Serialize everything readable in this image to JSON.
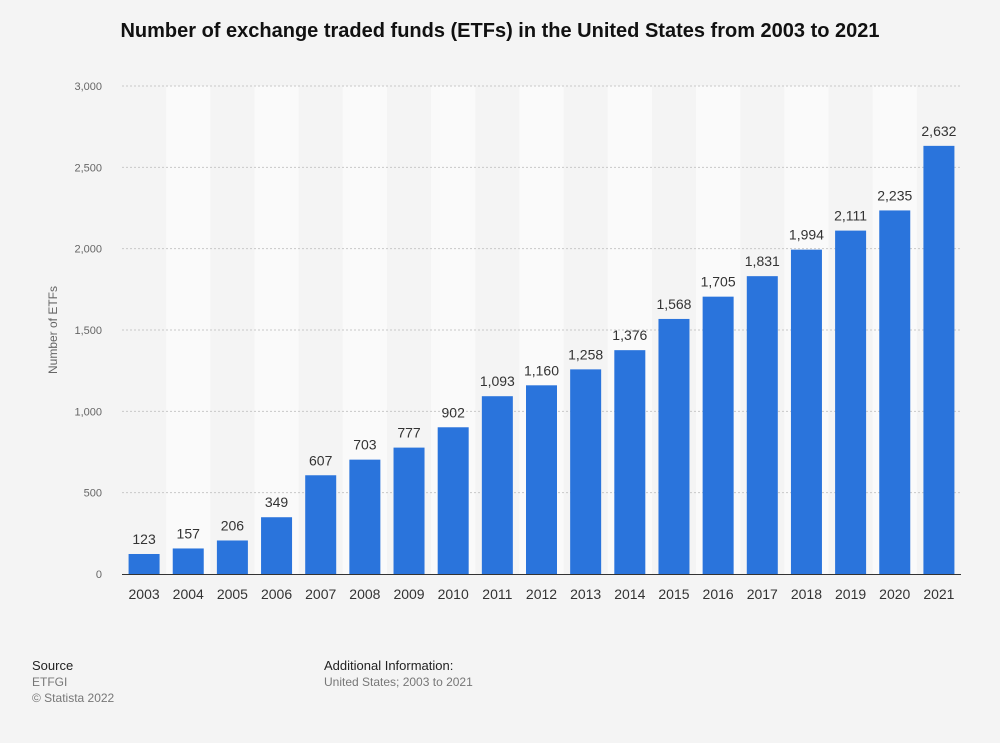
{
  "chart_data": {
    "type": "bar",
    "title": "Number of exchange traded funds (ETFs) in the United States from 2003 to 2021",
    "xlabel": "",
    "ylabel": "Number of ETFs",
    "categories": [
      "2003",
      "2004",
      "2005",
      "2006",
      "2007",
      "2008",
      "2009",
      "2010",
      "2011",
      "2012",
      "2013",
      "2014",
      "2015",
      "2016",
      "2017",
      "2018",
      "2019",
      "2020",
      "2021"
    ],
    "values": [
      123,
      157,
      206,
      349,
      607,
      703,
      777,
      902,
      1093,
      1160,
      1258,
      1376,
      1568,
      1705,
      1831,
      1994,
      2111,
      2235,
      2632
    ],
    "value_labels": [
      "123",
      "157",
      "206",
      "349",
      "607",
      "703",
      "777",
      "902",
      "1,093",
      "1,160",
      "1,258",
      "1,376",
      "1,568",
      "1,705",
      "1,831",
      "1,994",
      "2,111",
      "2,235",
      "2,632"
    ],
    "ylim": [
      0,
      3000
    ],
    "yticks": [
      0,
      500,
      1000,
      1500,
      2000,
      2500,
      3000
    ],
    "ytick_labels": [
      "0",
      "500",
      "1,000",
      "1,500",
      "2,000",
      "2,500",
      "3,000"
    ],
    "grid": true,
    "bar_color": "#2a74dc"
  },
  "footer": {
    "source_heading": "Source",
    "source_name": "ETFGI",
    "copyright": "© Statista 2022",
    "additional_heading": "Additional Information:",
    "additional_text": "United States; 2003 to 2021"
  }
}
